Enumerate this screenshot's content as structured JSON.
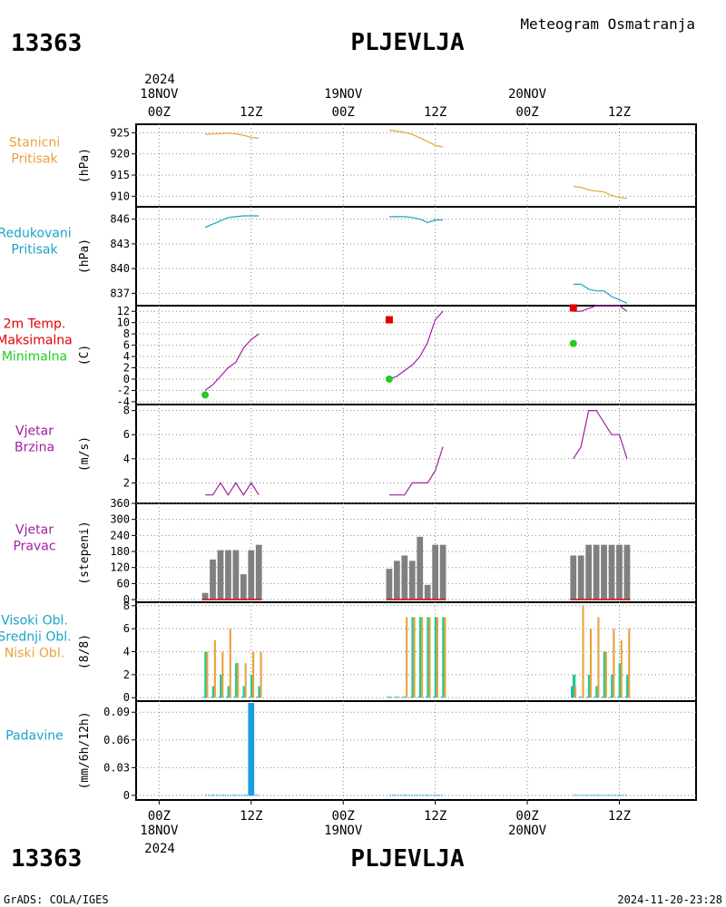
{
  "header": {
    "station_id": "13363",
    "station_name": "PLJEVLJA",
    "product_title": "Meteogram Osmatranja"
  },
  "footer": {
    "station_id": "13363",
    "station_name": "PLJEVLJA",
    "credit": "GrADS: COLA/IGES",
    "timestamp": "2024-11-20-23:28"
  },
  "time_axis": {
    "top_year": "2024",
    "bottom_year": "2024",
    "ticks": [
      {
        "hour": 0,
        "label": "00Z",
        "date": "18NOV"
      },
      {
        "hour": 12,
        "label": "12Z",
        "date": ""
      },
      {
        "hour": 24,
        "label": "00Z",
        "date": "19NOV"
      },
      {
        "hour": 36,
        "label": "12Z",
        "date": ""
      },
      {
        "hour": 48,
        "label": "00Z",
        "date": "20NOV"
      },
      {
        "hour": 60,
        "label": "12Z",
        "date": ""
      }
    ],
    "hour_range": [
      -3,
      70
    ]
  },
  "colors": {
    "orange": "#e8a33a",
    "cyan": "#1aa3c8",
    "red": "#e00000",
    "green": "#22cc22",
    "purple": "#a020a0",
    "gray": "#808080",
    "teal": "#20c997",
    "blue": "#1a9ee0"
  },
  "chart_data": [
    {
      "id": "pressure_station",
      "type": "line",
      "labels": [
        {
          "text": "Stanicni",
          "color": "#e8a33a"
        },
        {
          "text": "Pritisak",
          "color": "#e8a33a"
        }
      ],
      "unit": "(hPa)",
      "ylim": [
        907.5,
        927
      ],
      "yticks": [
        {
          "v": 910,
          "t": "910"
        },
        {
          "v": 915,
          "t": "915"
        },
        {
          "v": 920,
          "t": "920"
        },
        {
          "v": 925,
          "t": "925"
        }
      ],
      "series": [
        {
          "color": "#e8a33a",
          "segments": [
            {
              "x": [
                6,
                7,
                8,
                9,
                10,
                11,
                12,
                13
              ],
              "y": [
                924.6,
                924.7,
                924.8,
                924.9,
                924.7,
                924.4,
                923.9,
                923.7
              ]
            },
            {
              "x": [
                30,
                31,
                32,
                33,
                34,
                35,
                36,
                37
              ],
              "y": [
                925.6,
                925.4,
                925.1,
                924.6,
                923.8,
                922.9,
                922.0,
                921.6
              ]
            },
            {
              "x": [
                54,
                55,
                56,
                57,
                58,
                59,
                60,
                61
              ],
              "y": [
                912.3,
                912.1,
                911.5,
                911.2,
                911.0,
                910.2,
                909.7,
                909.5
              ]
            }
          ]
        }
      ]
    },
    {
      "id": "pressure_reduced",
      "type": "line",
      "labels": [
        {
          "text": "Redukovani",
          "color": "#1aa3c8"
        },
        {
          "text": "Pritisak",
          "color": "#1aa3c8"
        }
      ],
      "unit": "(hPa)",
      "ylim": [
        835.5,
        847.5
      ],
      "yticks": [
        {
          "v": 837,
          "t": "837"
        },
        {
          "v": 840,
          "t": "840"
        },
        {
          "v": 843,
          "t": "843"
        },
        {
          "v": 846,
          "t": "846"
        }
      ],
      "series": [
        {
          "color": "#1aa3c8",
          "segments": [
            {
              "x": [
                6,
                7,
                8,
                9,
                10,
                11,
                12,
                13
              ],
              "y": [
                845.0,
                845.4,
                845.8,
                846.2,
                846.3,
                846.4,
                846.4,
                846.4
              ]
            },
            {
              "x": [
                30,
                31,
                32,
                33,
                34,
                35,
                36,
                37
              ],
              "y": [
                846.3,
                846.3,
                846.3,
                846.2,
                846.0,
                845.6,
                845.9,
                845.9
              ]
            },
            {
              "x": [
                54,
                55,
                56,
                57,
                58,
                59,
                60,
                61
              ],
              "y": [
                838.1,
                838.1,
                837.5,
                837.3,
                837.3,
                836.6,
                836.2,
                835.8
              ]
            }
          ]
        }
      ]
    },
    {
      "id": "temperature",
      "type": "line",
      "labels": [
        {
          "text": "2m Temp.",
          "color": "#e00000"
        },
        {
          "text": "Maksimalna",
          "color": "#e00000"
        },
        {
          "text": "Minimalna",
          "color": "#22cc22"
        }
      ],
      "unit": "(C)",
      "ylim": [
        -4.5,
        13
      ],
      "yticks": [
        {
          "v": -4,
          "t": "-4"
        },
        {
          "v": -2,
          "t": "-2"
        },
        {
          "v": 0,
          "t": "0"
        },
        {
          "v": 2,
          "t": "2"
        },
        {
          "v": 4,
          "t": "4"
        },
        {
          "v": 6,
          "t": "6"
        },
        {
          "v": 8,
          "t": "8"
        },
        {
          "v": 10,
          "t": "10"
        },
        {
          "v": 12,
          "t": "12"
        }
      ],
      "series": [
        {
          "color": "#a020a0",
          "segments": [
            {
              "x": [
                6,
                7,
                8,
                9,
                10,
                11,
                12,
                13
              ],
              "y": [
                -2.0,
                -1.0,
                0.5,
                2.0,
                3.0,
                5.5,
                7.0,
                8.0
              ]
            },
            {
              "x": [
                30,
                31,
                32,
                33,
                34,
                35,
                36,
                37
              ],
              "y": [
                0.0,
                0.5,
                1.5,
                2.5,
                4.0,
                6.5,
                10.5,
                12.0
              ]
            },
            {
              "x": [
                54,
                55,
                56,
                57,
                58,
                59,
                60,
                61
              ],
              "y": [
                12.0,
                12.0,
                12.5,
                13.0,
                13.0,
                13.0,
                13.0,
                12.0
              ]
            }
          ]
        }
      ],
      "markers": [
        {
          "x": 30,
          "y": 10.5,
          "shape": "square",
          "color": "#e00000"
        },
        {
          "x": 54,
          "y": 12.6,
          "shape": "square",
          "color": "#e00000"
        },
        {
          "x": 6,
          "y": -2.8,
          "shape": "circle",
          "color": "#22cc22"
        },
        {
          "x": 30,
          "y": 0.0,
          "shape": "circle",
          "color": "#22cc22"
        },
        {
          "x": 54,
          "y": 6.3,
          "shape": "circle",
          "color": "#22cc22"
        }
      ]
    },
    {
      "id": "wind_speed",
      "type": "line",
      "labels": [
        {
          "text": "Vjetar",
          "color": "#a020a0"
        },
        {
          "text": "Brzina",
          "color": "#a020a0"
        }
      ],
      "unit": "(m/s)",
      "ylim": [
        0.3,
        8.5
      ],
      "yticks": [
        {
          "v": 2,
          "t": "2"
        },
        {
          "v": 4,
          "t": "4"
        },
        {
          "v": 6,
          "t": "6"
        },
        {
          "v": 8,
          "t": "8"
        }
      ],
      "series": [
        {
          "color": "#a020a0",
          "segments": [
            {
              "x": [
                6,
                7,
                8,
                9,
                10,
                11,
                12,
                13
              ],
              "y": [
                1,
                1,
                2,
                1,
                2,
                1,
                2,
                1
              ]
            },
            {
              "x": [
                30,
                31,
                32,
                33,
                34,
                35,
                36,
                37
              ],
              "y": [
                1,
                1,
                1,
                2,
                2,
                2,
                3,
                5
              ]
            },
            {
              "x": [
                54,
                55,
                56,
                57,
                58,
                59,
                60,
                61
              ],
              "y": [
                4,
                5,
                8,
                8,
                7,
                6,
                6,
                4
              ]
            }
          ]
        }
      ]
    },
    {
      "id": "wind_direction",
      "type": "bar",
      "labels": [
        {
          "text": "Vjetar",
          "color": "#a020a0"
        },
        {
          "text": "Pravac",
          "color": "#a020a0"
        }
      ],
      "unit": "(stepeni)",
      "ylim": [
        -10,
        360
      ],
      "yticks": [
        {
          "v": 0,
          "t": "0"
        },
        {
          "v": 60,
          "t": "60"
        },
        {
          "v": 120,
          "t": "120"
        },
        {
          "v": 180,
          "t": "180"
        },
        {
          "v": 240,
          "t": "240"
        },
        {
          "v": 300,
          "t": "300"
        },
        {
          "v": 360,
          "t": "360"
        }
      ],
      "bars": {
        "color": "#808080",
        "x": [
          6,
          7,
          8,
          9,
          10,
          11,
          12,
          13,
          30,
          31,
          32,
          33,
          34,
          35,
          36,
          37,
          54,
          55,
          56,
          57,
          58,
          59,
          60,
          61
        ],
        "values": [
          25,
          150,
          185,
          185,
          185,
          95,
          185,
          205,
          115,
          145,
          165,
          145,
          235,
          55,
          205,
          205,
          165,
          165,
          205,
          205,
          205,
          205,
          205,
          205
        ]
      },
      "baseline_color": "#e00000"
    },
    {
      "id": "clouds",
      "type": "bar",
      "labels": [
        {
          "text": "Visoki Obl.",
          "color": "#1aa3c8"
        },
        {
          "text": "Srednji Obl.",
          "color": "#1aa3c8"
        },
        {
          "text": "Niski Obl.",
          "color": "#e8a33a"
        }
      ],
      "unit": "(8/8)",
      "ylim": [
        -0.3,
        8.3
      ],
      "yticks": [
        {
          "v": 0,
          "t": "0"
        },
        {
          "v": 2,
          "t": "2"
        },
        {
          "v": 4,
          "t": "4"
        },
        {
          "v": 6,
          "t": "6"
        },
        {
          "v": 8,
          "t": "8"
        }
      ],
      "cloud_series": [
        {
          "name": "Visoki Obl.",
          "color": "#1aa3c8",
          "x": [
            6,
            7,
            8,
            9,
            10,
            11,
            12,
            13,
            30,
            31,
            32,
            33,
            34,
            35,
            36,
            37,
            54,
            55,
            56,
            57,
            58,
            59,
            60,
            61
          ],
          "values": [
            0,
            0,
            0,
            0,
            0,
            0,
            0,
            0,
            0,
            0,
            0,
            0,
            0,
            0,
            0,
            0,
            1,
            0,
            0,
            0,
            0,
            0,
            0,
            0
          ]
        },
        {
          "name": "Srednji Obl.",
          "color": "#20c997",
          "x": [
            6,
            7,
            8,
            9,
            10,
            11,
            12,
            13,
            30,
            31,
            32,
            33,
            34,
            35,
            36,
            37,
            54,
            55,
            56,
            57,
            58,
            59,
            60,
            61
          ],
          "values": [
            4,
            1,
            2,
            1,
            3,
            1,
            2,
            1,
            0,
            0,
            0,
            7,
            7,
            7,
            7,
            7,
            2,
            0,
            2,
            1,
            4,
            2,
            3,
            2
          ]
        },
        {
          "name": "Niski Obl.",
          "color": "#e8a33a",
          "x": [
            6,
            7,
            8,
            9,
            10,
            11,
            12,
            13,
            30,
            31,
            32,
            33,
            34,
            35,
            36,
            37,
            54,
            55,
            56,
            57,
            58,
            59,
            60,
            61
          ],
          "values": [
            4,
            5,
            4,
            6,
            3,
            3,
            4,
            4,
            0,
            0,
            7,
            7,
            7,
            7,
            7,
            7,
            1,
            8,
            6,
            7,
            4,
            6,
            5,
            6
          ]
        }
      ]
    },
    {
      "id": "precipitation",
      "type": "bar",
      "labels": [
        {
          "text": "Padavine",
          "color": "#1aa3c8"
        }
      ],
      "unit": "(mm/6h/12h)",
      "ylim": [
        -0.005,
        0.102
      ],
      "yticks": [
        {
          "v": 0,
          "t": "0"
        },
        {
          "v": 0.03,
          "t": "0.03"
        },
        {
          "v": 0.06,
          "t": "0.06"
        },
        {
          "v": 0.09,
          "t": "0.09"
        }
      ],
      "bars": {
        "color": "#1a9ee0",
        "x": [
          12
        ],
        "values": [
          0.1
        ]
      },
      "trace_segments": [
        [
          6,
          13
        ],
        [
          30,
          37
        ],
        [
          54,
          61
        ]
      ]
    }
  ]
}
